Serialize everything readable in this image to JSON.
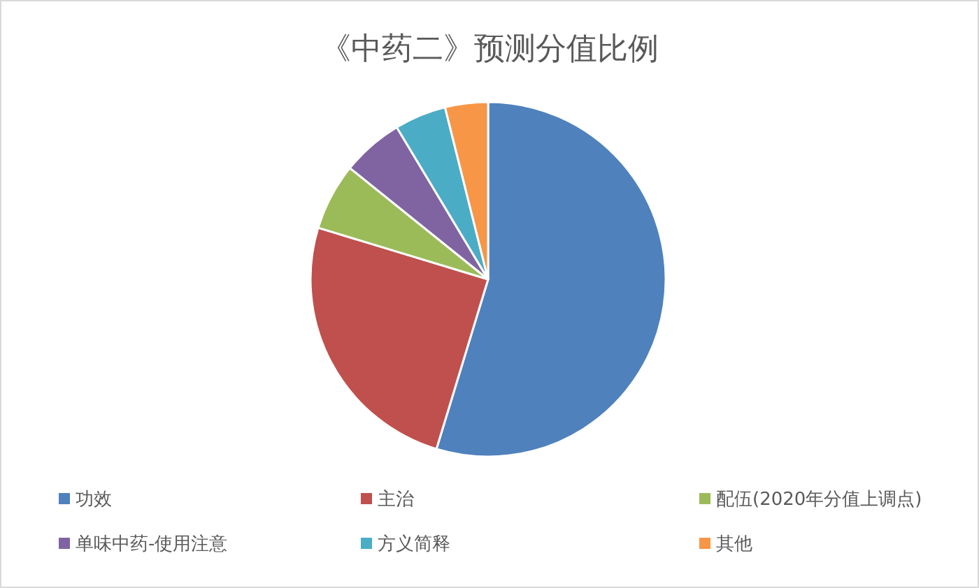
{
  "chart_data": {
    "type": "pie",
    "title": "《中药二》预测分值比例",
    "categories": [
      "功效",
      "主治",
      "配伍(2020年分值上调点)",
      "单味中药-使用注意",
      "方义简释",
      "其他"
    ],
    "values": [
      54.7,
      25.0,
      6.1,
      5.6,
      4.7,
      3.9
    ],
    "colors": [
      "#4f81bd",
      "#c0504d",
      "#9bbb59",
      "#8064a2",
      "#4bacc6",
      "#f79646"
    ],
    "legend": "bottom"
  }
}
